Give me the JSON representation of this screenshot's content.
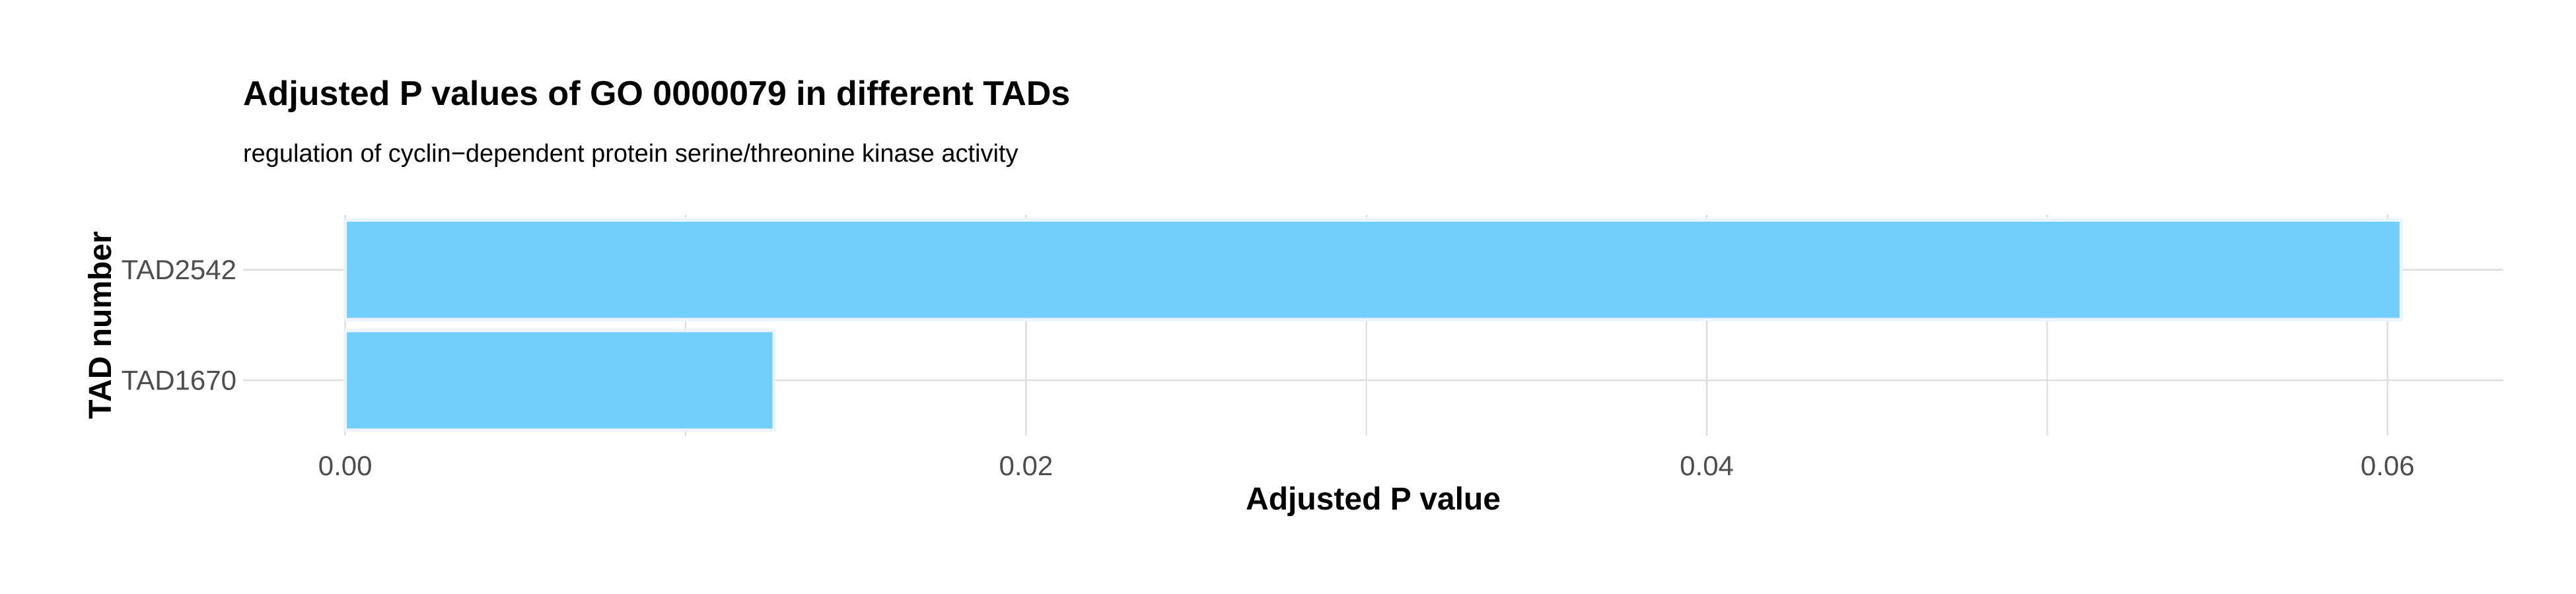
{
  "chart_data": {
    "type": "bar",
    "orientation": "horizontal",
    "title": "Adjusted P values of GO 0000079 in different TADs",
    "subtitle": "regulation of cyclin−dependent protein serine/threonine kinase activity",
    "xlabel": "Adjusted P value",
    "ylabel": "TAD number",
    "categories": [
      "TAD2542",
      "TAD1670"
    ],
    "values": [
      0.0604,
      0.0126
    ],
    "xlim": [
      -0.003,
      0.0634
    ],
    "xticks": [
      0.0,
      0.02,
      0.04,
      0.06
    ],
    "xtick_labels": [
      "0.00",
      "0.02",
      "0.04",
      "0.06"
    ],
    "grid": true,
    "legend": "none",
    "colors": {
      "bar_fill": "#74CEFA",
      "bar_stroke": "#EEF4FF",
      "grid": "#DDDDDD",
      "text": "#000000",
      "tick_text": "#4D4D4D"
    }
  }
}
